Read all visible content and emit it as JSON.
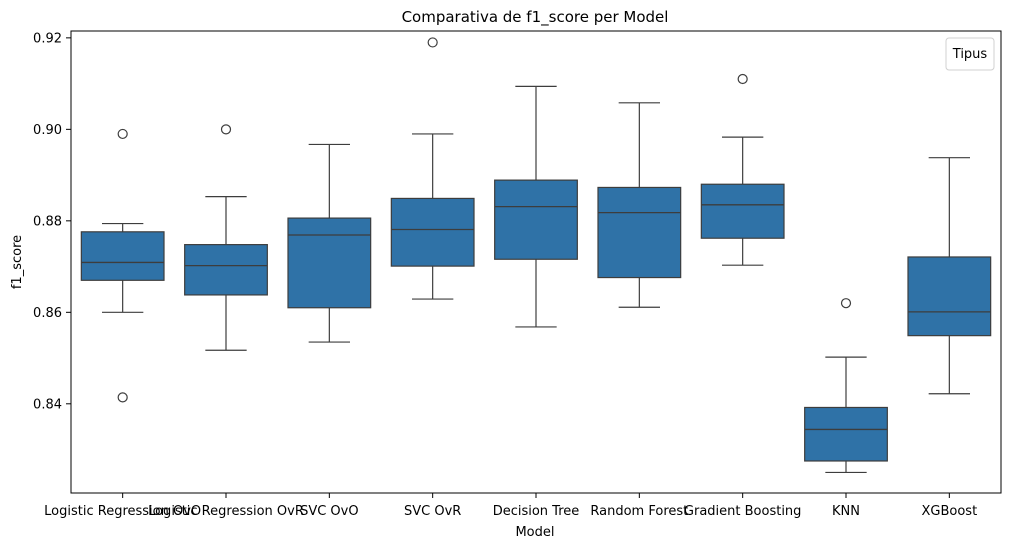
{
  "chart_data": {
    "type": "box",
    "title": "Comparativa de f1_score per Model",
    "xlabel": "Model",
    "ylabel": "f1_score",
    "ylim": [
      0.8205,
      0.9215
    ],
    "yticks": [
      "0.84",
      "0.86",
      "0.88",
      "0.90",
      "0.92"
    ],
    "ytick_values": [
      0.84,
      0.86,
      0.88,
      0.9,
      0.92
    ],
    "legend": {
      "title": "Tipus",
      "placement": "top-right"
    },
    "color": "#2f72a7",
    "edge_color": "#3d3d3d",
    "categories": [
      "Logistic Regression OvO",
      "Logistic Regression OvR",
      "SVC OvO",
      "SVC OvR",
      "Decision Tree",
      "Random Forest",
      "Gradient Boosting",
      "KNN",
      "XGBoost"
    ],
    "boxes": [
      {
        "category": "Logistic Regression OvO",
        "whisker_low": 0.86,
        "q1": 0.867,
        "median": 0.8709,
        "q3": 0.8776,
        "whisker_high": 0.8794,
        "outliers": [
          0.899,
          0.8414
        ]
      },
      {
        "category": "Logistic Regression OvR",
        "whisker_low": 0.8517,
        "q1": 0.8638,
        "median": 0.8702,
        "q3": 0.8748,
        "whisker_high": 0.8853,
        "outliers": [
          0.9
        ]
      },
      {
        "category": "SVC OvO",
        "whisker_low": 0.8535,
        "q1": 0.861,
        "median": 0.8769,
        "q3": 0.8806,
        "whisker_high": 0.8967,
        "outliers": []
      },
      {
        "category": "SVC OvR",
        "whisker_low": 0.8629,
        "q1": 0.8701,
        "median": 0.8781,
        "q3": 0.8849,
        "whisker_high": 0.899,
        "outliers": [
          0.919
        ]
      },
      {
        "category": "Decision Tree",
        "whisker_low": 0.8568,
        "q1": 0.8716,
        "median": 0.8831,
        "q3": 0.8889,
        "whisker_high": 0.9094,
        "outliers": []
      },
      {
        "category": "Random Forest",
        "whisker_low": 0.8611,
        "q1": 0.8676,
        "median": 0.8818,
        "q3": 0.8873,
        "whisker_high": 0.9058,
        "outliers": []
      },
      {
        "category": "Gradient Boosting",
        "whisker_low": 0.8703,
        "q1": 0.8762,
        "median": 0.8835,
        "q3": 0.888,
        "whisker_high": 0.8983,
        "outliers": [
          0.911
        ]
      },
      {
        "category": "KNN",
        "whisker_low": 0.825,
        "q1": 0.8275,
        "median": 0.8344,
        "q3": 0.8392,
        "whisker_high": 0.8502,
        "outliers": [
          0.862
        ]
      },
      {
        "category": "XGBoost",
        "whisker_low": 0.8422,
        "q1": 0.8549,
        "median": 0.8601,
        "q3": 0.8721,
        "whisker_high": 0.8938,
        "outliers": []
      }
    ]
  }
}
